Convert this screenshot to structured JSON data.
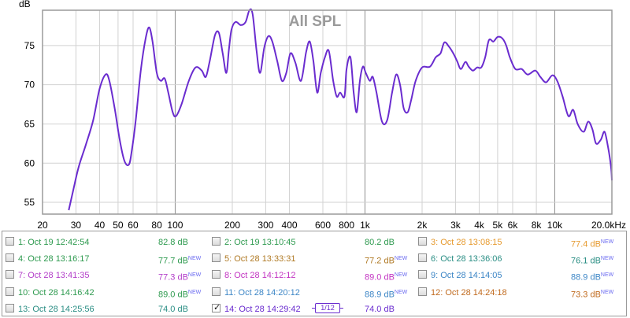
{
  "chart_data": {
    "type": "line",
    "title": "All SPL",
    "ylabel": "dB",
    "xlabel": "",
    "xscale": "log",
    "xlim": [
      20,
      20000
    ],
    "ylim": [
      53.5,
      79.5
    ],
    "grid": true,
    "x_ticks": [
      {
        "v": 20,
        "label": "20"
      },
      {
        "v": 30,
        "label": "30"
      },
      {
        "v": 40,
        "label": "40"
      },
      {
        "v": 50,
        "label": "50"
      },
      {
        "v": 60,
        "label": "60"
      },
      {
        "v": 80,
        "label": "80"
      },
      {
        "v": 100,
        "label": "100"
      },
      {
        "v": 200,
        "label": "200"
      },
      {
        "v": 300,
        "label": "300"
      },
      {
        "v": 400,
        "label": "400"
      },
      {
        "v": 600,
        "label": "600"
      },
      {
        "v": 800,
        "label": "800"
      },
      {
        "v": 1000,
        "label": "1k"
      },
      {
        "v": 2000,
        "label": "2k"
      },
      {
        "v": 3000,
        "label": "3k"
      },
      {
        "v": 4000,
        "label": "4k"
      },
      {
        "v": 5000,
        "label": "5k"
      },
      {
        "v": 6000,
        "label": "6k"
      },
      {
        "v": 8000,
        "label": "8k"
      },
      {
        "v": 10000,
        "label": "10k"
      },
      {
        "v": 20000,
        "label": "20.0kHz"
      }
    ],
    "y_ticks": [
      55,
      60,
      65,
      70,
      75
    ],
    "series": [
      {
        "name": "14: Oct 28 14:29:42",
        "color": "#6a2ccf",
        "points": [
          [
            27.5,
            54.0
          ],
          [
            29.0,
            56.5
          ],
          [
            31.0,
            59.5
          ],
          [
            34.0,
            62.5
          ],
          [
            37.0,
            65.5
          ],
          [
            40.0,
            69.5
          ],
          [
            43.0,
            71.3
          ],
          [
            45.0,
            70.5
          ],
          [
            48.0,
            67.0
          ],
          [
            51.0,
            63.0
          ],
          [
            54.0,
            60.3
          ],
          [
            57.0,
            59.8
          ],
          [
            59.0,
            61.5
          ],
          [
            62.0,
            65.5
          ],
          [
            66.0,
            72.0
          ],
          [
            70.0,
            76.0
          ],
          [
            73.0,
            77.3
          ],
          [
            76.0,
            75.5
          ],
          [
            80.0,
            71.5
          ],
          [
            84.0,
            70.5
          ],
          [
            88.0,
            70.8
          ],
          [
            92.0,
            69.0
          ],
          [
            97.0,
            66.5
          ],
          [
            101.0,
            66.0
          ],
          [
            108.0,
            67.5
          ],
          [
            118.0,
            70.5
          ],
          [
            128.0,
            72.2
          ],
          [
            138.0,
            71.8
          ],
          [
            145.0,
            71.0
          ],
          [
            152.0,
            73.0
          ],
          [
            162.0,
            76.3
          ],
          [
            170.0,
            76.6
          ],
          [
            178.0,
            74.0
          ],
          [
            186.0,
            71.5
          ],
          [
            192.0,
            74.5
          ],
          [
            198.0,
            77.0
          ],
          [
            208.0,
            78.0
          ],
          [
            222.0,
            77.6
          ],
          [
            235.0,
            78.0
          ],
          [
            246.0,
            79.5
          ],
          [
            256.0,
            79.0
          ],
          [
            268.0,
            74.5
          ],
          [
            280.0,
            71.5
          ],
          [
            295.0,
            74.8
          ],
          [
            310.0,
            76.2
          ],
          [
            325.0,
            75.5
          ],
          [
            345.0,
            73.0
          ],
          [
            365.0,
            70.5
          ],
          [
            385.0,
            71.5
          ],
          [
            405.0,
            74.0
          ],
          [
            430.0,
            72.8
          ],
          [
            460.0,
            70.5
          ],
          [
            490.0,
            74.2
          ],
          [
            512.0,
            75.5
          ],
          [
            535.0,
            73.0
          ],
          [
            560.0,
            69.0
          ],
          [
            585.0,
            71.5
          ],
          [
            615.0,
            73.5
          ],
          [
            645.0,
            74.3
          ],
          [
            680.0,
            70.5
          ],
          [
            710.0,
            68.5
          ],
          [
            740.0,
            69.0
          ],
          [
            780.0,
            68.5
          ],
          [
            800.0,
            72.0
          ],
          [
            838.0,
            73.5
          ],
          [
            872.0,
            69.0
          ],
          [
            905.0,
            66.5
          ],
          [
            940.0,
            70.5
          ],
          [
            975.0,
            72.3
          ],
          [
            1010.0,
            71.5
          ],
          [
            1060.0,
            70.5
          ],
          [
            1100.0,
            71.0
          ],
          [
            1150.0,
            69.0
          ],
          [
            1230.0,
            65.3
          ],
          [
            1310.0,
            65.5
          ],
          [
            1390.0,
            69.0
          ],
          [
            1460.0,
            71.3
          ],
          [
            1530.0,
            70.0
          ],
          [
            1600.0,
            67.0
          ],
          [
            1680.0,
            66.5
          ],
          [
            1750.0,
            68.0
          ],
          [
            1850.0,
            70.5
          ],
          [
            2000.0,
            72.2
          ],
          [
            2200.0,
            72.3
          ],
          [
            2360.0,
            73.5
          ],
          [
            2500.0,
            74.0
          ],
          [
            2620.0,
            75.4
          ],
          [
            2780.0,
            74.8
          ],
          [
            2920.0,
            74.0
          ],
          [
            3060.0,
            73.0
          ],
          [
            3200.0,
            72.0
          ],
          [
            3380.0,
            72.9
          ],
          [
            3520.0,
            72.3
          ],
          [
            3700.0,
            71.8
          ],
          [
            3900.0,
            72.2
          ],
          [
            4100.0,
            72.2
          ],
          [
            4300.0,
            73.5
          ],
          [
            4500.0,
            75.7
          ],
          [
            4750.0,
            75.5
          ],
          [
            5000.0,
            76.1
          ],
          [
            5300.0,
            75.9
          ],
          [
            5550.0,
            75.0
          ],
          [
            5800.0,
            73.5
          ],
          [
            6200.0,
            72.0
          ],
          [
            6700.0,
            72.0
          ],
          [
            7200.0,
            71.3
          ],
          [
            7900.0,
            71.8
          ],
          [
            8400.0,
            71.0
          ],
          [
            9000.0,
            70.3
          ],
          [
            9700.0,
            71.2
          ],
          [
            10300.0,
            70.5
          ],
          [
            11000.0,
            68.5
          ],
          [
            11800.0,
            66.0
          ],
          [
            12500.0,
            66.8
          ],
          [
            13200.0,
            65.0
          ],
          [
            14200.0,
            64.0
          ],
          [
            15000.0,
            65.3
          ],
          [
            15800.0,
            64.3
          ],
          [
            16500.0,
            62.5
          ],
          [
            17500.0,
            63.0
          ],
          [
            18300.0,
            64.0
          ],
          [
            19100.0,
            62.0
          ],
          [
            19800.0,
            59.5
          ],
          [
            20000.0,
            57.8
          ]
        ]
      }
    ]
  },
  "legend": {
    "rows": [
      [
        {
          "name": "1: Oct 19 12:42:54",
          "spl": "82.8 dB",
          "new": "",
          "color": "#2e9a4f"
        },
        {
          "name": "2: Oct 19 13:10:45",
          "spl": "80.2 dB",
          "new": "",
          "color": "#2e9a4f"
        },
        {
          "name": "3: Oct 28 13:08:15",
          "spl": "77.4 dB",
          "new": "NEW",
          "color": "#e69a2e"
        }
      ],
      [
        {
          "name": "4: Oct 28 13:16:17",
          "spl": "77.7 dB",
          "new": "NEW",
          "color": "#2e9a4f"
        },
        {
          "name": "5: Oct 28 13:33:31",
          "spl": "77.2 dB",
          "new": "NEW",
          "color": "#b07a25"
        },
        {
          "name": "6: Oct 28 13:36:06",
          "spl": "76.1 dB",
          "new": "NEW",
          "color": "#2a8e84"
        }
      ],
      [
        {
          "name": "7: Oct 28 13:41:35",
          "spl": "77.3 dB",
          "new": "NEW",
          "color": "#b33fc9"
        },
        {
          "name": "8: Oct 28 14:12:12",
          "spl": "89.0 dB",
          "new": "NEW",
          "color": "#c234c2"
        },
        {
          "name": "9: Oct 28 14:14:05",
          "spl": "88.9 dB",
          "new": "NEW",
          "color": "#3d86c6"
        }
      ],
      [
        {
          "name": "10: Oct 28 14:16:42",
          "spl": "89.0 dB",
          "new": "NEW",
          "color": "#2e9a4f"
        },
        {
          "name": "11: Oct 28 14:20:12",
          "spl": "88.9 dB",
          "new": "NEW",
          "color": "#3d86c6"
        },
        {
          "name": "12: Oct 28 14:24:18",
          "spl": "73.3 dB",
          "new": "NEW",
          "color": "#c06a1e"
        }
      ],
      [
        {
          "name": "13: Oct 28 14:25:56",
          "spl": "74.0 dB",
          "new": "",
          "color": "#2a8e84"
        },
        {
          "name": "14: Oct 28 14:29:42",
          "spl": "74.0 dB",
          "new": "",
          "color": "#6a2ccf",
          "checked": true,
          "smoothing": "1/12"
        },
        null
      ]
    ]
  }
}
